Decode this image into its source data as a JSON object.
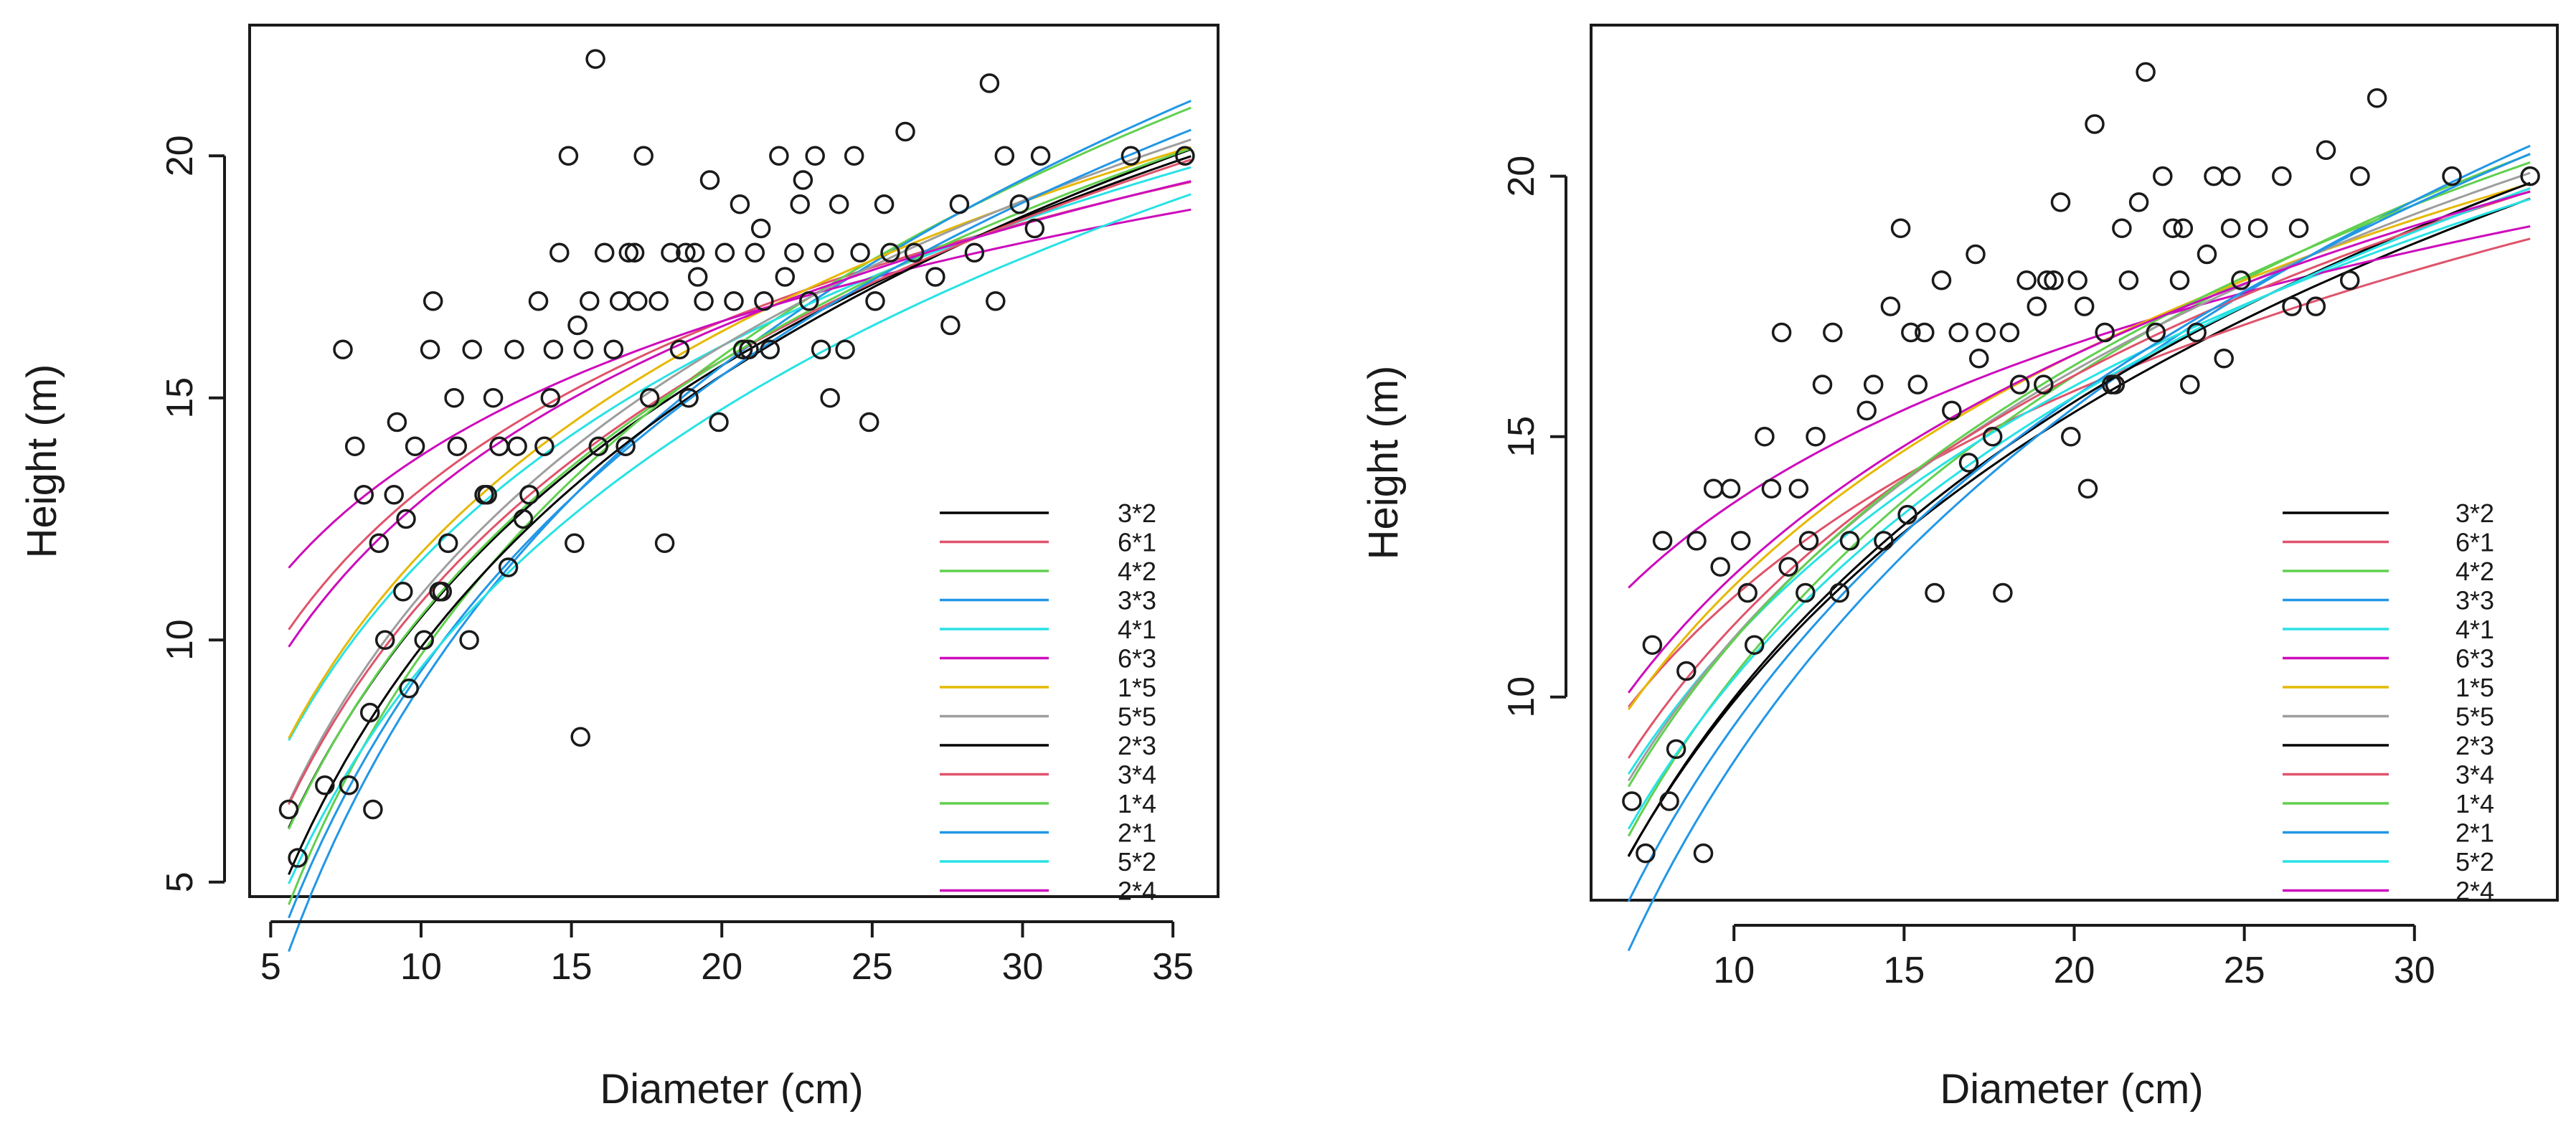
{
  "chart_data": [
    {
      "type": "scatter",
      "xlabel": "Diameter (cm)",
      "ylabel": "Height (m)",
      "xlim": [
        4.3,
        36.5
      ],
      "ylim": [
        4.7,
        22.7
      ],
      "x_ticks": [
        5,
        10,
        15,
        20,
        25,
        30,
        35
      ],
      "y_ticks": [
        5,
        10,
        15,
        20
      ],
      "x_tick_labels": [
        "5",
        "10",
        "15",
        "20",
        "25",
        "30",
        "35"
      ],
      "y_tick_labels": [
        "5",
        "10",
        "15",
        "20"
      ],
      "legend_position": "bottom-right",
      "legend_entries": [
        "3*2",
        "6*1",
        "4*2",
        "3*3",
        "4*1",
        "6*3",
        "1*5",
        "5*5",
        "2*3",
        "3*4",
        "1*4",
        "2*1",
        "5*2",
        "2*4"
      ],
      "curve_x_range": [
        5.6,
        35.6
      ],
      "curves": [
        {
          "name": "3*2",
          "color": "#000000",
          "a": -6.8,
          "b": 7.5
        },
        {
          "name": "6*1",
          "color": "#DF536B",
          "a": 1.6,
          "b": 5.0
        },
        {
          "name": "4*2",
          "color": "#61D04F",
          "a": -10.8,
          "b": 8.9
        },
        {
          "name": "3*3",
          "color": "#2297E6",
          "a": -12.8,
          "b": 9.5
        },
        {
          "name": "4*1",
          "color": "#28E2E5",
          "a": -3.1,
          "b": 6.4
        },
        {
          "name": "6*3",
          "color": "#CD0BBC",
          "a": 4.6,
          "b": 4.0
        },
        {
          "name": "1*5",
          "color": "#E6B800",
          "a": -3.4,
          "b": 6.6
        },
        {
          "name": "5*5",
          "color": "#9E9E9E",
          "a": -6.1,
          "b": 7.4
        },
        {
          "name": "2*3",
          "color": "#000000",
          "a": -8.8,
          "b": 8.1
        },
        {
          "name": "3*4",
          "color": "#DF536B",
          "a": -5.8,
          "b": 7.2
        },
        {
          "name": "1*4",
          "color": "#61D04F",
          "a": -7.0,
          "b": 7.6
        },
        {
          "name": "2*1",
          "color": "#2297E6",
          "a": -10.9,
          "b": 8.8
        },
        {
          "name": "5*2",
          "color": "#28E2E5",
          "a": -8.3,
          "b": 7.7
        },
        {
          "name": "2*4",
          "color": "#CD0BBC",
          "a": 0.9,
          "b": 5.2
        }
      ],
      "points": [
        [
          5.6,
          6.5
        ],
        [
          5.9,
          5.5
        ],
        [
          6.8,
          7
        ],
        [
          7.4,
          16
        ],
        [
          7.6,
          7
        ],
        [
          7.8,
          14
        ],
        [
          8.1,
          13
        ],
        [
          8.3,
          8.5
        ],
        [
          8.4,
          6.5
        ],
        [
          8.6,
          12
        ],
        [
          8.8,
          10
        ],
        [
          9.1,
          13
        ],
        [
          9.4,
          11
        ],
        [
          9.6,
          9
        ],
        [
          9.8,
          14
        ],
        [
          10.1,
          10
        ],
        [
          10.3,
          16
        ],
        [
          10.4,
          17
        ],
        [
          10.6,
          11
        ],
        [
          10.9,
          12
        ],
        [
          11.2,
          14
        ],
        [
          11.6,
          10
        ],
        [
          11.7,
          16
        ],
        [
          12.1,
          13
        ],
        [
          12.4,
          15
        ],
        [
          12.6,
          14
        ],
        [
          12.9,
          11.5
        ],
        [
          13.1,
          16
        ],
        [
          13.4,
          12.5
        ],
        [
          13.6,
          13
        ],
        [
          13.9,
          17
        ],
        [
          14.1,
          14
        ],
        [
          14.3,
          15
        ],
        [
          14.6,
          18
        ],
        [
          14.9,
          20
        ],
        [
          15.1,
          12
        ],
        [
          15.3,
          8
        ],
        [
          15.4,
          16
        ],
        [
          15.6,
          17
        ],
        [
          15.8,
          22
        ],
        [
          15.9,
          14
        ],
        [
          16.1,
          18
        ],
        [
          16.4,
          16
        ],
        [
          16.6,
          17
        ],
        [
          16.8,
          14
        ],
        [
          17.1,
          18
        ],
        [
          17.4,
          20
        ],
        [
          17.6,
          15
        ],
        [
          17.9,
          17
        ],
        [
          18.1,
          12
        ],
        [
          18.3,
          18
        ],
        [
          18.6,
          16
        ],
        [
          18.9,
          15
        ],
        [
          19.1,
          18
        ],
        [
          19.4,
          17
        ],
        [
          19.6,
          19.5
        ],
        [
          19.9,
          14.5
        ],
        [
          20.1,
          18
        ],
        [
          20.4,
          17
        ],
        [
          20.6,
          19
        ],
        [
          20.9,
          16
        ],
        [
          21.1,
          18
        ],
        [
          21.4,
          17
        ],
        [
          21.6,
          16
        ],
        [
          21.9,
          20
        ],
        [
          22.1,
          17.5
        ],
        [
          22.4,
          18
        ],
        [
          22.6,
          19
        ],
        [
          22.9,
          17
        ],
        [
          23.1,
          20
        ],
        [
          23.4,
          18
        ],
        [
          23.6,
          15
        ],
        [
          23.9,
          19
        ],
        [
          24.1,
          16
        ],
        [
          24.4,
          20
        ],
        [
          24.6,
          18
        ],
        [
          24.9,
          14.5
        ],
        [
          25.1,
          17
        ],
        [
          25.4,
          19
        ],
        [
          25.6,
          18
        ],
        [
          26.1,
          20.5
        ],
        [
          26.4,
          18
        ],
        [
          27.1,
          17.5
        ],
        [
          27.6,
          16.5
        ],
        [
          27.9,
          19
        ],
        [
          28.4,
          18
        ],
        [
          28.9,
          21.5
        ],
        [
          29.1,
          17
        ],
        [
          29.4,
          20
        ],
        [
          29.9,
          19
        ],
        [
          30.4,
          18.5
        ],
        [
          30.6,
          20
        ],
        [
          33.6,
          20
        ],
        [
          35.4,
          20
        ],
        [
          9.2,
          14.5
        ],
        [
          10.7,
          11
        ],
        [
          12.2,
          13
        ],
        [
          14.4,
          16
        ],
        [
          17.2,
          17
        ],
        [
          19.2,
          17.5
        ],
        [
          21.3,
          18.5
        ],
        [
          23.3,
          16
        ],
        [
          9.5,
          12.5
        ],
        [
          11.1,
          15
        ],
        [
          13.2,
          14
        ],
        [
          15.2,
          16.5
        ],
        [
          16.9,
          18
        ],
        [
          18.8,
          18
        ],
        [
          20.7,
          16
        ],
        [
          22.7,
          19.5
        ]
      ]
    },
    {
      "type": "scatter",
      "xlabel": "Diameter (cm)",
      "ylabel": "Height (m)",
      "xlim": [
        5.8,
        34.2
      ],
      "ylim": [
        6.1,
        22.9
      ],
      "x_ticks": [
        10,
        15,
        20,
        25,
        30
      ],
      "y_ticks": [
        10,
        15,
        20
      ],
      "x_tick_labels": [
        "10",
        "15",
        "20",
        "25",
        "30"
      ],
      "y_tick_labels": [
        "10",
        "15",
        "20"
      ],
      "legend_position": "bottom-right",
      "legend_entries": [
        "3*2",
        "6*1",
        "4*2",
        "3*3",
        "4*1",
        "6*3",
        "1*5",
        "5*5",
        "2*3",
        "3*4",
        "1*4",
        "2*1",
        "5*2",
        "2*4"
      ],
      "curve_x_range": [
        6.9,
        33.4
      ],
      "curves": [
        {
          "name": "3*2",
          "color": "#000000",
          "a": -8.5,
          "b": 8.0
        },
        {
          "name": "6*1",
          "color": "#DF536B",
          "a": -1.2,
          "b": 5.7
        },
        {
          "name": "4*2",
          "color": "#61D04F",
          "a": -8.7,
          "b": 8.3
        },
        {
          "name": "3*3",
          "color": "#2297E6",
          "a": -13.8,
          "b": 9.8
        },
        {
          "name": "4*1",
          "color": "#28E2E5",
          "a": -5.0,
          "b": 7.0
        },
        {
          "name": "6*3",
          "color": "#CD0BBC",
          "a": 3.6,
          "b": 4.4
        },
        {
          "name": "1*5",
          "color": "#E6B800",
          "a": -2.6,
          "b": 6.4
        },
        {
          "name": "5*5",
          "color": "#9E9E9E",
          "a": -5.9,
          "b": 7.4
        },
        {
          "name": "2*3",
          "color": "#000000",
          "a": -8.9,
          "b": 8.2
        },
        {
          "name": "3*4",
          "color": "#DF536B",
          "a": -4.5,
          "b": 6.9
        },
        {
          "name": "1*4",
          "color": "#61D04F",
          "a": -6.4,
          "b": 7.6
        },
        {
          "name": "2*1",
          "color": "#2297E6",
          "a": -11.5,
          "b": 9.1
        },
        {
          "name": "5*2",
          "color": "#28E2E5",
          "a": -7.6,
          "b": 7.8
        },
        {
          "name": "2*4",
          "color": "#CD0BBC",
          "a": -1.7,
          "b": 6.1
        }
      ],
      "points": [
        [
          7.0,
          8
        ],
        [
          7.4,
          7
        ],
        [
          7.6,
          11
        ],
        [
          7.9,
          13
        ],
        [
          8.1,
          8
        ],
        [
          8.3,
          9
        ],
        [
          8.6,
          10.5
        ],
        [
          8.9,
          13
        ],
        [
          9.1,
          7
        ],
        [
          9.4,
          14
        ],
        [
          9.6,
          12.5
        ],
        [
          9.9,
          14
        ],
        [
          10.4,
          12
        ],
        [
          10.6,
          11
        ],
        [
          10.9,
          15
        ],
        [
          11.1,
          14
        ],
        [
          11.4,
          17
        ],
        [
          11.6,
          12.5
        ],
        [
          11.9,
          14
        ],
        [
          12.1,
          12
        ],
        [
          12.4,
          15
        ],
        [
          12.6,
          16
        ],
        [
          12.9,
          17
        ],
        [
          13.1,
          12
        ],
        [
          13.4,
          13
        ],
        [
          13.9,
          15.5
        ],
        [
          14.1,
          16
        ],
        [
          14.4,
          13
        ],
        [
          14.6,
          17.5
        ],
        [
          14.9,
          19
        ],
        [
          15.1,
          13.5
        ],
        [
          15.4,
          16
        ],
        [
          15.6,
          17
        ],
        [
          15.9,
          12
        ],
        [
          16.1,
          18
        ],
        [
          16.4,
          15.5
        ],
        [
          16.6,
          17
        ],
        [
          16.9,
          14.5
        ],
        [
          17.1,
          18.5
        ],
        [
          17.4,
          17
        ],
        [
          17.6,
          15
        ],
        [
          17.9,
          12
        ],
        [
          18.1,
          17
        ],
        [
          18.4,
          16
        ],
        [
          18.6,
          18
        ],
        [
          18.9,
          17.5
        ],
        [
          19.1,
          16
        ],
        [
          19.4,
          18
        ],
        [
          19.6,
          19.5
        ],
        [
          19.9,
          15
        ],
        [
          20.1,
          18
        ],
        [
          20.4,
          14
        ],
        [
          20.6,
          21
        ],
        [
          20.9,
          17
        ],
        [
          21.1,
          16
        ],
        [
          21.4,
          19
        ],
        [
          21.6,
          18
        ],
        [
          21.9,
          19.5
        ],
        [
          22.1,
          22
        ],
        [
          22.4,
          17
        ],
        [
          22.6,
          20
        ],
        [
          22.9,
          19
        ],
        [
          23.1,
          18
        ],
        [
          23.4,
          16
        ],
        [
          23.6,
          17
        ],
        [
          23.9,
          18.5
        ],
        [
          24.1,
          20
        ],
        [
          24.4,
          16.5
        ],
        [
          24.6,
          19
        ],
        [
          24.9,
          18
        ],
        [
          25.4,
          19
        ],
        [
          26.1,
          20
        ],
        [
          26.4,
          17.5
        ],
        [
          26.6,
          19
        ],
        [
          27.1,
          17.5
        ],
        [
          27.4,
          20.5
        ],
        [
          28.1,
          18
        ],
        [
          28.4,
          20
        ],
        [
          28.9,
          21.5
        ],
        [
          31.1,
          20
        ],
        [
          33.4,
          20
        ],
        [
          10.2,
          13
        ],
        [
          12.2,
          13
        ],
        [
          15.2,
          17
        ],
        [
          17.2,
          16.5
        ],
        [
          19.2,
          18
        ],
        [
          21.2,
          16
        ],
        [
          23.2,
          19
        ],
        [
          24.6,
          20
        ],
        [
          20.3,
          17.5
        ]
      ]
    }
  ]
}
